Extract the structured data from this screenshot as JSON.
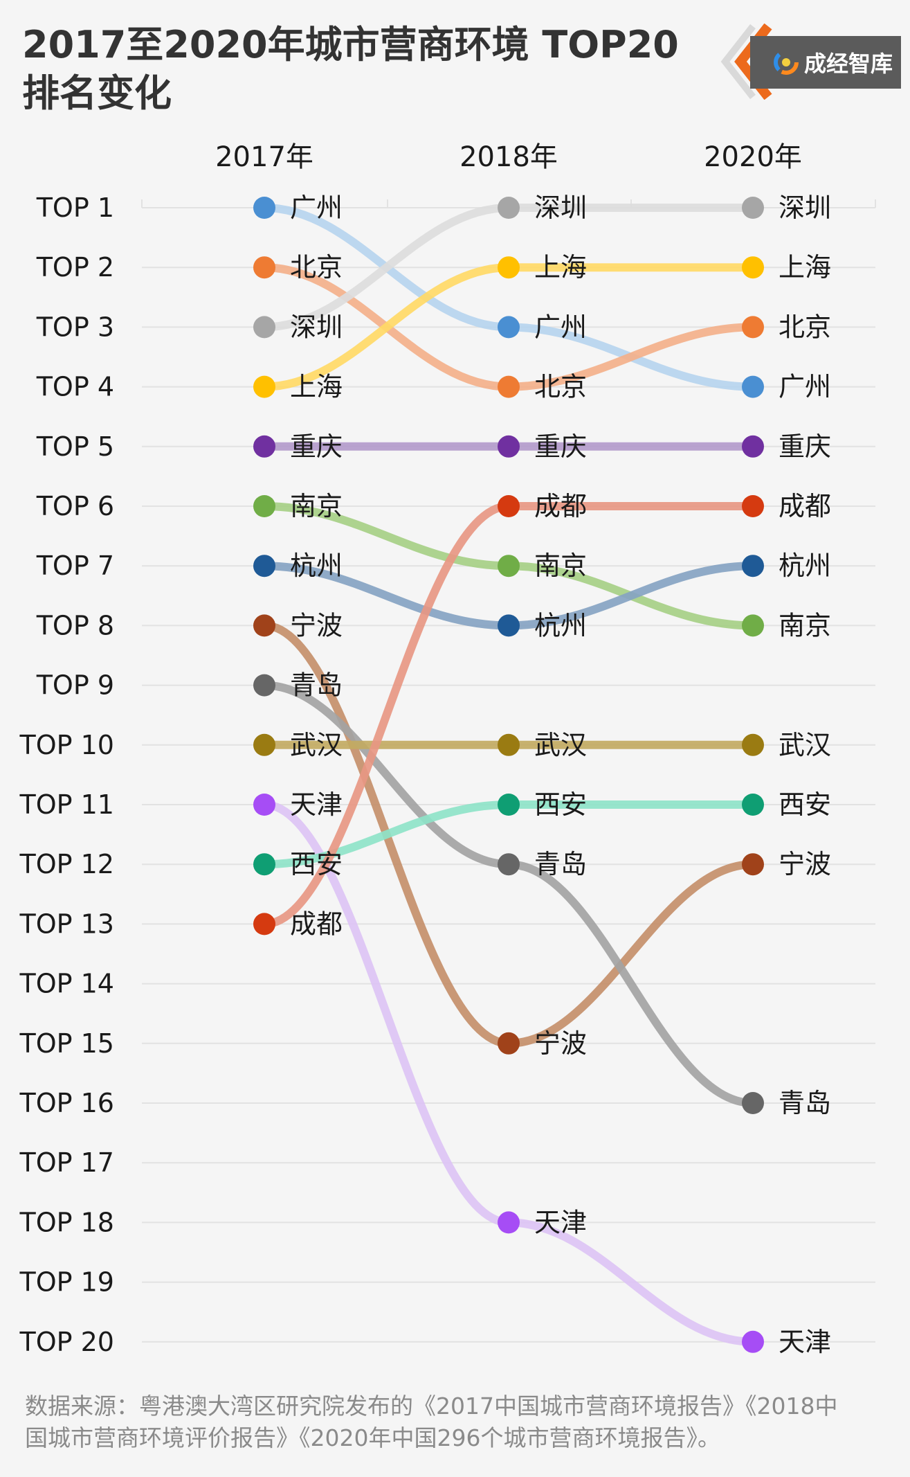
{
  "header": {
    "title_line1": "2017至2020年城市营商环境 TOP20",
    "title_line2": "排名变化"
  },
  "logo": {
    "text": "成经智库",
    "icon": "swirl-logo-icon"
  },
  "footer": {
    "source_line1": "数据来源：粤港澳大湾区研究院发布的《2017中国城市营商环境报告》《2018中",
    "source_line2": "国城市营商环境评价报告》《2020年中国296个城市营商环境报告》。"
  },
  "chart_data": {
    "type": "line",
    "title": "2017至2020年城市营商环境 TOP20 排名变化",
    "x": [
      "2017年",
      "2018年",
      "2020年"
    ],
    "y_categories": [
      "TOP 1",
      "TOP 2",
      "TOP 3",
      "TOP 4",
      "TOP 5",
      "TOP 6",
      "TOP 7",
      "TOP 8",
      "TOP 9",
      "TOP 10",
      "TOP 11",
      "TOP 12",
      "TOP 13",
      "TOP 14",
      "TOP 15",
      "TOP 16",
      "TOP 17",
      "TOP 18",
      "TOP 19",
      "TOP 20"
    ],
    "ylim": [
      1,
      20
    ],
    "y_reversed": true,
    "grid": true,
    "series": [
      {
        "name": "广州",
        "values": [
          1,
          3,
          4
        ],
        "line_color": "#b6d4ee",
        "dot_color": "#4a8fd2"
      },
      {
        "name": "北京",
        "values": [
          2,
          4,
          3
        ],
        "line_color": "#f3b08a",
        "dot_color": "#ee7b33"
      },
      {
        "name": "深圳",
        "values": [
          3,
          1,
          1
        ],
        "line_color": "#dcdcdc",
        "dot_color": "#a6a6a6"
      },
      {
        "name": "上海",
        "values": [
          4,
          2,
          2
        ],
        "line_color": "#ffd966",
        "dot_color": "#ffc000"
      },
      {
        "name": "重庆",
        "values": [
          5,
          5,
          5
        ],
        "line_color": "#b39bcb",
        "dot_color": "#7030a0"
      },
      {
        "name": "南京",
        "values": [
          6,
          7,
          8
        ],
        "line_color": "#a6cf86",
        "dot_color": "#70ad47"
      },
      {
        "name": "杭州",
        "values": [
          7,
          8,
          7
        ],
        "line_color": "#85a3c2",
        "dot_color": "#1f5a96"
      },
      {
        "name": "宁波",
        "values": [
          8,
          15,
          12
        ],
        "line_color": "#c48f6a",
        "dot_color": "#a0421a"
      },
      {
        "name": "青岛",
        "values": [
          9,
          12,
          16
        ],
        "line_color": "#a3a3a3",
        "dot_color": "#666666"
      },
      {
        "name": "武汉",
        "values": [
          10,
          10,
          10
        ],
        "line_color": "#c2aa62",
        "dot_color": "#9a7b12"
      },
      {
        "name": "天津",
        "values": [
          11,
          18,
          20
        ],
        "line_color": "#dcc3f4",
        "dot_color": "#a64df5"
      },
      {
        "name": "西安",
        "values": [
          12,
          11,
          11
        ],
        "line_color": "#8ee3c8",
        "dot_color": "#0f9e73"
      },
      {
        "name": "成都",
        "values": [
          13,
          6,
          6
        ],
        "line_color": "#e79783",
        "dot_color": "#d53a10"
      }
    ]
  }
}
